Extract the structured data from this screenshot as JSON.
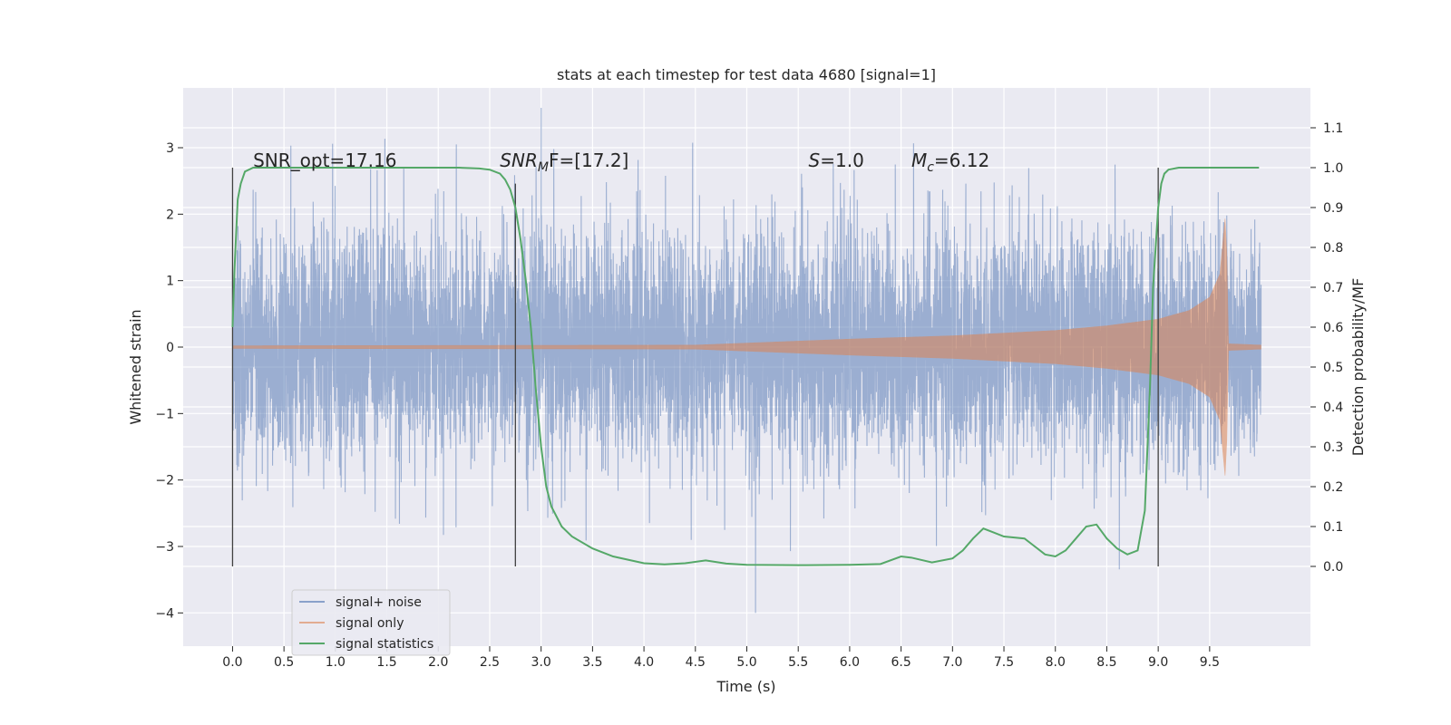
{
  "chart_data": {
    "type": "line",
    "title": "stats at each timestep for test data 4680 [signal=1]",
    "xlabel": "Time (s)",
    "ylabel": "Whitened strain",
    "y2label": "Detection probability/MF",
    "xlim": [
      -0.48,
      10.48
    ],
    "ylim": [
      -4.5,
      3.9
    ],
    "y2lim": [
      -0.2,
      1.2
    ],
    "x_ticks": [
      0.0,
      0.5,
      1.0,
      1.5,
      2.0,
      2.5,
      3.0,
      3.5,
      4.0,
      4.5,
      5.0,
      5.5,
      6.0,
      6.5,
      7.0,
      7.5,
      8.0,
      8.5,
      9.0,
      9.5
    ],
    "x_tick_labels": [
      "0.0",
      "0.5",
      "1.0",
      "1.5",
      "2.0",
      "2.5",
      "3.0",
      "3.5",
      "4.0",
      "4.5",
      "5.0",
      "5.5",
      "6.0",
      "6.5",
      "7.0",
      "7.5",
      "8.0",
      "8.5",
      "9.0",
      "9.5"
    ],
    "y_ticks": [
      -4,
      -3,
      -2,
      -1,
      0,
      1,
      2,
      3
    ],
    "y_tick_labels": [
      "−4",
      "−3",
      "−2",
      "−1",
      "0",
      "1",
      "2",
      "3"
    ],
    "y2_ticks": [
      0.0,
      0.1,
      0.2,
      0.3,
      0.4,
      0.5,
      0.6,
      0.7,
      0.8,
      0.9,
      1.0,
      1.1
    ],
    "y2_tick_labels": [
      "0.0",
      "0.1",
      "0.2",
      "0.3",
      "0.4",
      "0.5",
      "0.6",
      "0.7",
      "0.8",
      "0.9",
      "1.0",
      "1.1"
    ],
    "grid": true,
    "legend_position": "lower-left",
    "annotations": [
      {
        "key": "snr_opt",
        "x": 0.2,
        "y2": 1.0,
        "text": "SNR_opt=17.16"
      },
      {
        "key": "snr_mf",
        "x": 2.6,
        "y2": 1.0,
        "prefix": "SNR",
        "sub": "M",
        "suffix": "F=[17.2]"
      },
      {
        "key": "s",
        "x": 5.6,
        "y2": 1.0,
        "prefix": "S",
        "suffix": "=1.0"
      },
      {
        "key": "mc",
        "x": 6.6,
        "y2": 1.0,
        "prefix": "M",
        "sub": "c",
        "suffix": "=6.12"
      }
    ],
    "vertical_lines": [
      {
        "x": 0.0,
        "y2": [
          0.0,
          1.0
        ]
      },
      {
        "x": 2.75,
        "y2": [
          0.0,
          0.96
        ]
      },
      {
        "x": 9.0,
        "y2": [
          0.0,
          1.0
        ]
      }
    ],
    "series": [
      {
        "name": "signal+ noise",
        "color": "#4c72b0",
        "axis": "left",
        "style": "noise",
        "x_range": [
          0.0,
          10.0
        ],
        "noise_sigma": 0.75,
        "y_extremes": {
          "max": 3.6,
          "min": -4.0
        }
      },
      {
        "name": "signal only",
        "color": "#dd8452",
        "axis": "left",
        "style": "chirp",
        "x_range": [
          0.0,
          10.0
        ],
        "envelope": [
          [
            0.0,
            0.02
          ],
          [
            4.5,
            0.03
          ],
          [
            5.0,
            0.06
          ],
          [
            6.0,
            0.12
          ],
          [
            7.0,
            0.17
          ],
          [
            8.0,
            0.25
          ],
          [
            8.5,
            0.32
          ],
          [
            9.0,
            0.42
          ],
          [
            9.3,
            0.55
          ],
          [
            9.5,
            0.75
          ],
          [
            9.6,
            1.1
          ],
          [
            9.66,
            2.1
          ],
          [
            9.68,
            0.05
          ],
          [
            10.0,
            0.03
          ]
        ]
      },
      {
        "name": "signal statistics",
        "color": "#55a868",
        "axis": "right",
        "style": "line",
        "x": [
          0.0,
          0.02,
          0.05,
          0.08,
          0.12,
          0.2,
          0.3,
          0.5,
          1.0,
          1.5,
          2.0,
          2.2,
          2.4,
          2.5,
          2.6,
          2.65,
          2.7,
          2.75,
          2.8,
          2.85,
          2.9,
          2.95,
          3.0,
          3.05,
          3.1,
          3.2,
          3.3,
          3.5,
          3.7,
          4.0,
          4.2,
          4.4,
          4.6,
          4.8,
          5.0,
          5.5,
          6.0,
          6.3,
          6.5,
          6.6,
          6.8,
          7.0,
          7.1,
          7.2,
          7.3,
          7.4,
          7.5,
          7.7,
          7.8,
          7.9,
          8.0,
          8.1,
          8.2,
          8.3,
          8.4,
          8.5,
          8.6,
          8.7,
          8.8,
          8.87,
          8.92,
          8.95,
          9.0,
          9.03,
          9.06,
          9.1,
          9.2,
          9.4,
          9.6,
          9.8,
          9.98
        ],
        "y": [
          0.6,
          0.75,
          0.92,
          0.96,
          0.99,
          1.0,
          1.0,
          1.0,
          1.0,
          1.0,
          1.0,
          1.0,
          0.998,
          0.995,
          0.985,
          0.97,
          0.945,
          0.9,
          0.82,
          0.72,
          0.6,
          0.44,
          0.3,
          0.2,
          0.15,
          0.1,
          0.075,
          0.045,
          0.025,
          0.008,
          0.005,
          0.008,
          0.015,
          0.007,
          0.004,
          0.003,
          0.004,
          0.006,
          0.025,
          0.022,
          0.01,
          0.02,
          0.04,
          0.07,
          0.095,
          0.085,
          0.075,
          0.07,
          0.05,
          0.03,
          0.025,
          0.04,
          0.07,
          0.1,
          0.105,
          0.07,
          0.045,
          0.03,
          0.04,
          0.14,
          0.45,
          0.7,
          0.9,
          0.96,
          0.985,
          0.995,
          1.0,
          1.0,
          1.0,
          1.0,
          1.0
        ]
      }
    ]
  }
}
